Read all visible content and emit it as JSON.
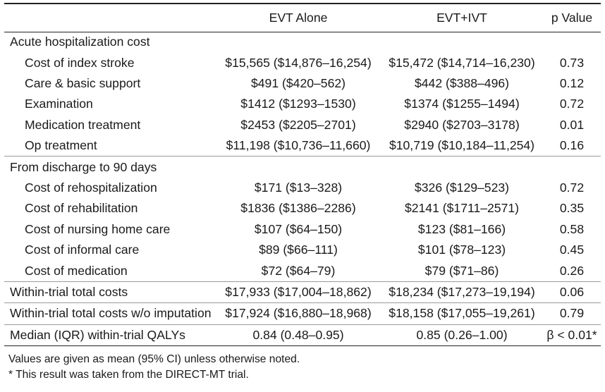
{
  "header": {
    "col1": "",
    "col2": "EVT Alone",
    "col3": "EVT+IVT",
    "col4": "p Value"
  },
  "rows": [
    {
      "label": "Acute hospitalization cost",
      "a": "",
      "b": "",
      "p": ""
    },
    {
      "label": "Cost of index stroke",
      "a": "$15,565 ($14,876–16,254)",
      "b": "$15,472 ($14,714–16,230)",
      "p": "0.73"
    },
    {
      "label": "Care & basic support",
      "a": "$491 ($420–562)",
      "b": "$442 ($388–496)",
      "p": "0.12"
    },
    {
      "label": "Examination",
      "a": "$1412 ($1293–1530)",
      "b": "$1374 ($1255–1494)",
      "p": "0.72"
    },
    {
      "label": "Medication treatment",
      "a": "$2453 ($2205–2701)",
      "b": "$2940 ($2703–3178)",
      "p": "0.01"
    },
    {
      "label": "Op treatment",
      "a": "$11,198 ($10,736–11,660)",
      "b": "$10,719 ($10,184–11,254)",
      "p": "0.16"
    },
    {
      "label": "From discharge to 90 days",
      "a": "",
      "b": "",
      "p": ""
    },
    {
      "label": "Cost of rehospitalization",
      "a": "$171 ($13–328)",
      "b": "$326 ($129–523)",
      "p": "0.72"
    },
    {
      "label": "Cost of rehabilitation",
      "a": "$1836 ($1386–2286)",
      "b": "$2141 ($1711–2571)",
      "p": "0.35"
    },
    {
      "label": "Cost of nursing home care",
      "a": "$107 ($64–150)",
      "b": "$123 ($81–166)",
      "p": "0.58"
    },
    {
      "label": "Cost of informal care",
      "a": "$89 ($66–111)",
      "b": "$101 ($78–123)",
      "p": "0.45"
    },
    {
      "label": "Cost of medication",
      "a": "$72 ($64–79)",
      "b": "$79 ($71–86)",
      "p": "0.26"
    },
    {
      "label": "Within-trial total costs",
      "a": "$17,933 ($17,004–18,862)",
      "b": "$18,234 ($17,273–19,194)",
      "p": "0.06"
    },
    {
      "label": "Within-trial total costs w/o imputation",
      "a": "$17,924 ($16,880–18,968)",
      "b": "$18,158 ($17,055–19,261)",
      "p": "0.79"
    },
    {
      "label": "Median (IQR) within-trial QALYs",
      "a": "0.84 (0.48–0.95)",
      "b": "0.85 (0.26–1.00)",
      "p": "β < 0.01*"
    }
  ],
  "notes": [
    "Values are given as mean (95% CI) unless otherwise noted.",
    "* This result was taken from the DIRECT-MT trial."
  ]
}
